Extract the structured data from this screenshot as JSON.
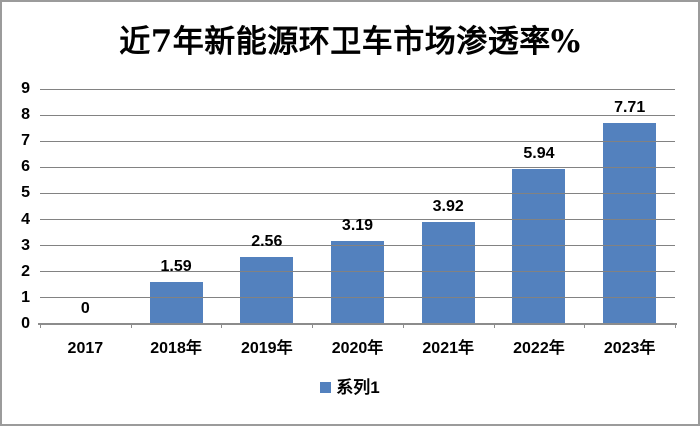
{
  "title": "近7年新能源环卫车市场渗透率%",
  "legend": {
    "label": "系列1"
  },
  "colors": {
    "bar": "#5381BE",
    "gridline": "#828282",
    "axis_line": "#8C8C8C",
    "frame_border": "#9B9B9B",
    "text": "#000000",
    "background": "#FFFFFF"
  },
  "chart_data": {
    "type": "bar",
    "title": "近7年新能源环卫车市场渗透率%",
    "categories": [
      "2017",
      "2018年",
      "2019年",
      "2020年",
      "2021年",
      "2022年",
      "2023年"
    ],
    "values": [
      0,
      1.59,
      2.56,
      3.19,
      3.92,
      5.94,
      7.71
    ],
    "point_labels": [
      "0",
      "1.59",
      "2.56",
      "3.19",
      "3.92",
      "5.94",
      "7.71"
    ],
    "series_name": "系列1",
    "xlabel": "",
    "ylabel": "",
    "ylim": [
      0,
      9
    ],
    "yticks": [
      0,
      1,
      2,
      3,
      4,
      5,
      6,
      7,
      8,
      9
    ],
    "grid": true,
    "gridlines_over_bars": true,
    "legend_position": "bottom"
  }
}
